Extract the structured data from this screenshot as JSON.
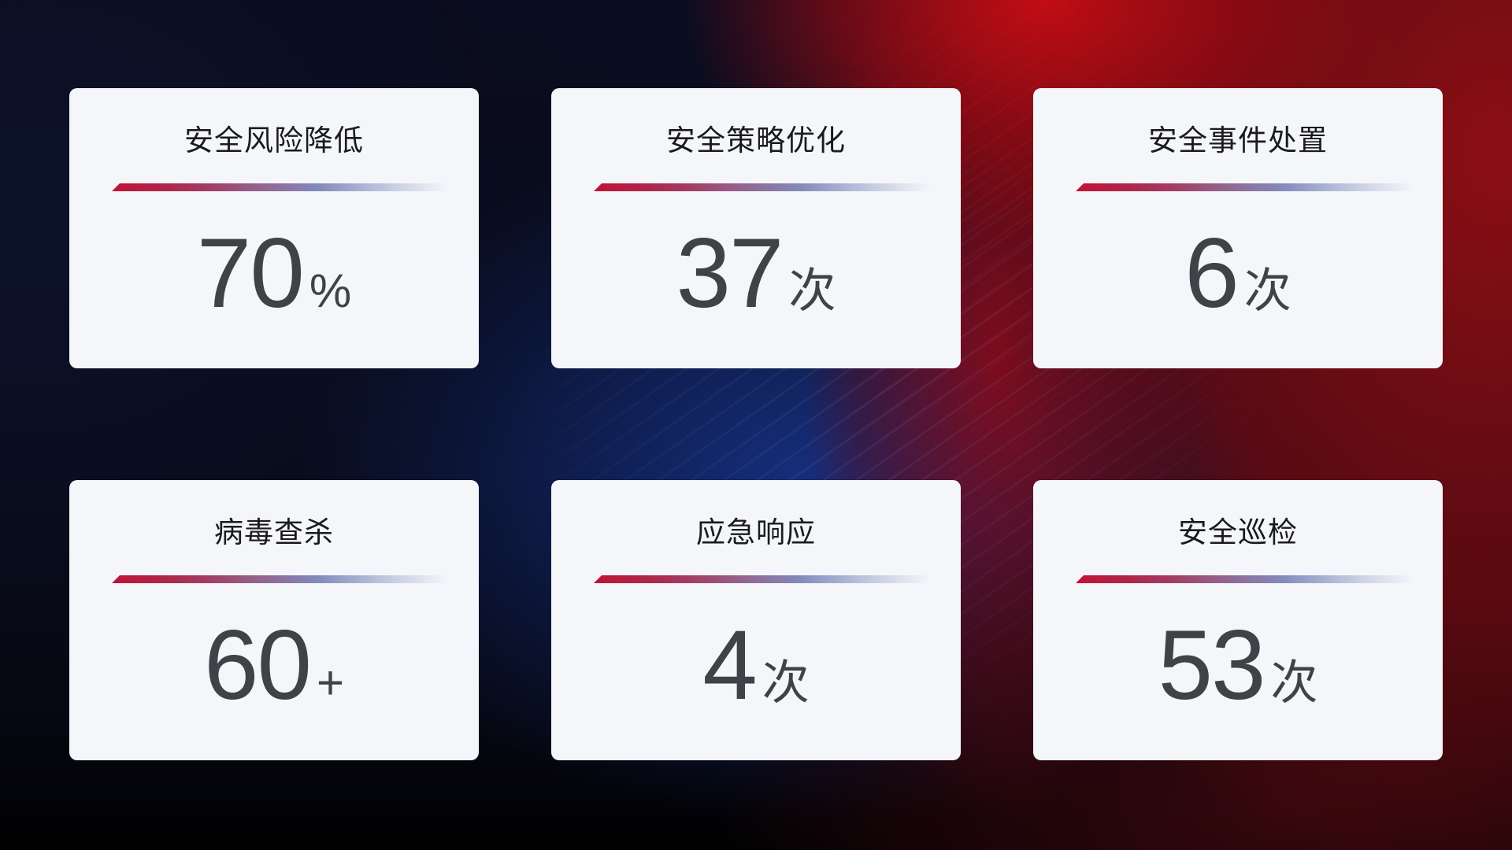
{
  "cards": [
    {
      "label": "安全风险降低",
      "value": "70",
      "unit": "%"
    },
    {
      "label": "安全策略优化",
      "value": "37",
      "unit": "次"
    },
    {
      "label": "安全事件处置",
      "value": "6",
      "unit": "次"
    },
    {
      "label": "病毒查杀",
      "value": "60",
      "unit": "+"
    },
    {
      "label": "应急响应",
      "value": "4",
      "unit": "次"
    },
    {
      "label": "安全巡检",
      "value": "53",
      "unit": "次"
    }
  ],
  "colors": {
    "card_background": "#f5f6fa",
    "title_text": "#1a1b1e",
    "value_text": "#3f4247",
    "divider_start": "#c31237",
    "divider_mid": "#8289bb",
    "divider_fade": "#c9d0e4",
    "background_navy": "#0a0d20",
    "background_red": "#920f13",
    "background_red_bright": "#c90d13",
    "background_blue_glow": "#183484"
  }
}
